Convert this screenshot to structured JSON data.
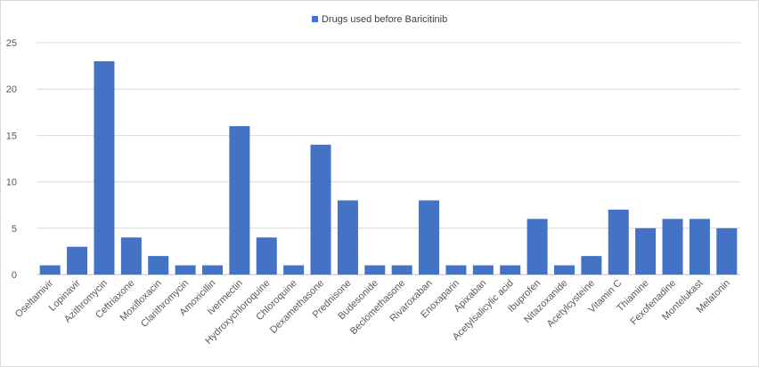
{
  "chart_data": {
    "type": "bar",
    "legend_position": "top",
    "grid": true,
    "bar_color": "#4472C4",
    "series": [
      {
        "name": "Drugs used before Baricitinib",
        "values": [
          1,
          3,
          23,
          4,
          2,
          1,
          1,
          16,
          4,
          1,
          14,
          8,
          1,
          1,
          8,
          1,
          1,
          1,
          6,
          1,
          2,
          7,
          5,
          6,
          6,
          5
        ]
      }
    ],
    "categories": [
      "Oseltamivir",
      "Lopinavir",
      "Azithromycin",
      "Ceftriaxone",
      "Moxifloxacin",
      "Clarithromycin",
      "Amoxicillin",
      "Ivermectin",
      "Hydroxychloroquine",
      "Chloroquine",
      "Dexamethasone",
      "Prednisone",
      "Budesonide",
      "Beclomethasone",
      "Rivaroxaban",
      "Enoxaparin",
      "Apixaban",
      "Acetylsalicylic acid",
      "Ibuprofen",
      "Nitazoxanide",
      "Acetylcysteine",
      "Vitamin C",
      "Thiamine",
      "Fexofenadine",
      "Montelukast",
      "Melatonin"
    ],
    "ylim": [
      0,
      25
    ],
    "yticks": [
      "0",
      "5",
      "10",
      "15",
      "20",
      "25"
    ]
  }
}
